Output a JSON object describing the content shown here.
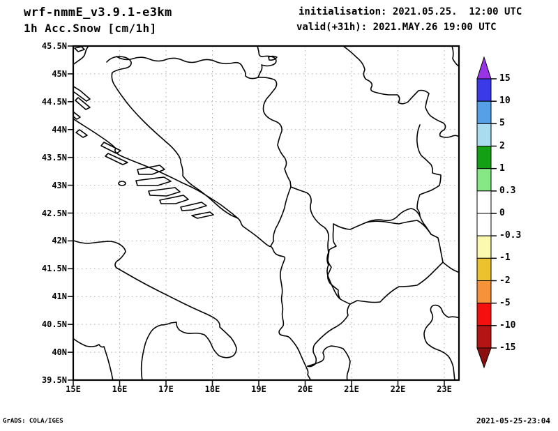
{
  "header": {
    "model": "wrf-nmmE_v3.9.1-e3km",
    "field": "1h Acc.Snow [cm/1h]",
    "initialisation": "initialisation: 2021.05.25.  12:00 UTC",
    "valid": "valid(+31h): 2021.MAY.26 19:00 UTC"
  },
  "map": {
    "lat_ticks": [
      "45.5N",
      "45N",
      "44.5N",
      "44N",
      "43.5N",
      "43N",
      "42.5N",
      "42N",
      "41.5N",
      "41N",
      "40.5N",
      "40N",
      "39.5N"
    ],
    "lon_ticks": [
      "15E",
      "16E",
      "17E",
      "18E",
      "19E",
      "20E",
      "21E",
      "22E",
      "23E"
    ]
  },
  "colorbar": {
    "levels": [
      "15",
      "10",
      "5",
      "2",
      "1",
      "0.3",
      "0",
      "-0.3",
      "-1",
      "-2",
      "-5",
      "-10",
      "-15"
    ],
    "segment_colors": [
      "#3a3ae8",
      "#55a0e6",
      "#aadcf0",
      "#14a014",
      "#85e885",
      "#ffffff",
      "#ffffff",
      "#fbf8b0",
      "#ecc22e",
      "#f6923a",
      "#f50f0f",
      "#b41414"
    ],
    "above_color": "#9933e6",
    "below_color": "#8c0f0f",
    "line_color": "#000000",
    "grid_color": "#aaaaaa"
  },
  "footer": {
    "left": "GrADS: COLA/IGES",
    "right": "2021-05-25-23:04"
  }
}
